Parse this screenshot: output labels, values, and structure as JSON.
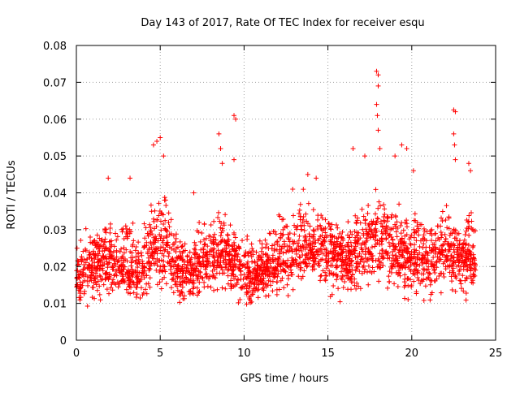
{
  "chart_data": {
    "type": "scatter",
    "title": "Day 143 of 2017, Rate Of TEC Index for receiver esqu",
    "xlabel": "GPS time / hours",
    "ylabel": "ROTI / TECUs",
    "xlim": [
      0,
      25
    ],
    "ylim": [
      0,
      0.08
    ],
    "x_ticks": [
      "0",
      "5",
      "10",
      "15",
      "20",
      "25"
    ],
    "y_ticks": [
      "0",
      "0.01",
      "0.02",
      "0.03",
      "0.04",
      "0.05",
      "0.06",
      "0.07",
      "0.08"
    ],
    "grid": true,
    "marker": "plus",
    "marker_color": "#ff0000",
    "series": [
      {
        "name": "ROTI",
        "envelope_x": [
          0,
          0.5,
          1,
          1.5,
          2,
          2.5,
          3,
          3.5,
          4,
          4.5,
          5,
          5.5,
          6,
          6.5,
          7,
          7.5,
          8,
          8.5,
          9,
          9.5,
          10,
          10.5,
          11,
          11.5,
          12,
          12.5,
          13,
          13.5,
          14,
          14.5,
          15,
          15.5,
          16,
          16.5,
          17,
          17.5,
          18,
          18.5,
          19,
          19.5,
          20,
          20.5,
          21,
          21.5,
          22,
          22.5,
          23,
          23.5,
          23.8
        ],
        "median": [
          0.017,
          0.018,
          0.02,
          0.021,
          0.022,
          0.02,
          0.019,
          0.018,
          0.02,
          0.024,
          0.027,
          0.024,
          0.02,
          0.018,
          0.019,
          0.022,
          0.023,
          0.024,
          0.022,
          0.02,
          0.018,
          0.017,
          0.018,
          0.02,
          0.021,
          0.022,
          0.024,
          0.026,
          0.025,
          0.024,
          0.023,
          0.022,
          0.021,
          0.022,
          0.024,
          0.026,
          0.028,
          0.026,
          0.024,
          0.022,
          0.023,
          0.022,
          0.021,
          0.022,
          0.024,
          0.023,
          0.021,
          0.022,
          0.02
        ],
        "upper": [
          0.026,
          0.031,
          0.033,
          0.034,
          0.035,
          0.034,
          0.037,
          0.032,
          0.033,
          0.042,
          0.048,
          0.04,
          0.032,
          0.028,
          0.031,
          0.034,
          0.036,
          0.039,
          0.034,
          0.032,
          0.029,
          0.028,
          0.029,
          0.032,
          0.035,
          0.037,
          0.039,
          0.042,
          0.04,
          0.038,
          0.036,
          0.034,
          0.033,
          0.034,
          0.038,
          0.041,
          0.045,
          0.041,
          0.04,
          0.037,
          0.039,
          0.037,
          0.034,
          0.035,
          0.037,
          0.036,
          0.033,
          0.04,
          0.032
        ],
        "lower": [
          0.01,
          0.009,
          0.008,
          0.01,
          0.011,
          0.01,
          0.009,
          0.009,
          0.01,
          0.012,
          0.012,
          0.011,
          0.009,
          0.008,
          0.009,
          0.01,
          0.011,
          0.011,
          0.01,
          0.009,
          0.009,
          0.008,
          0.009,
          0.01,
          0.01,
          0.011,
          0.011,
          0.012,
          0.012,
          0.011,
          0.011,
          0.01,
          0.01,
          0.01,
          0.011,
          0.012,
          0.013,
          0.012,
          0.011,
          0.01,
          0.011,
          0.01,
          0.01,
          0.01,
          0.011,
          0.011,
          0.01,
          0.01,
          0.01
        ],
        "spikes": [
          {
            "x": 4.6,
            "y": 0.053
          },
          {
            "x": 4.8,
            "y": 0.054
          },
          {
            "x": 5.0,
            "y": 0.055
          },
          {
            "x": 5.2,
            "y": 0.05
          },
          {
            "x": 8.5,
            "y": 0.056
          },
          {
            "x": 8.6,
            "y": 0.052
          },
          {
            "x": 8.7,
            "y": 0.048
          },
          {
            "x": 9.4,
            "y": 0.061
          },
          {
            "x": 9.5,
            "y": 0.06
          },
          {
            "x": 9.4,
            "y": 0.049
          },
          {
            "x": 16.5,
            "y": 0.052
          },
          {
            "x": 17.2,
            "y": 0.05
          },
          {
            "x": 17.9,
            "y": 0.073
          },
          {
            "x": 18.0,
            "y": 0.072
          },
          {
            "x": 18.0,
            "y": 0.069
          },
          {
            "x": 17.9,
            "y": 0.064
          },
          {
            "x": 17.95,
            "y": 0.061
          },
          {
            "x": 18.0,
            "y": 0.057
          },
          {
            "x": 18.1,
            "y": 0.052
          },
          {
            "x": 19.4,
            "y": 0.053
          },
          {
            "x": 19.7,
            "y": 0.052
          },
          {
            "x": 19.0,
            "y": 0.05
          },
          {
            "x": 22.5,
            "y": 0.0625
          },
          {
            "x": 22.6,
            "y": 0.062
          },
          {
            "x": 22.5,
            "y": 0.056
          },
          {
            "x": 22.55,
            "y": 0.053
          },
          {
            "x": 22.6,
            "y": 0.049
          },
          {
            "x": 23.4,
            "y": 0.048
          },
          {
            "x": 23.5,
            "y": 0.046
          },
          {
            "x": 1.9,
            "y": 0.044
          },
          {
            "x": 3.2,
            "y": 0.044
          },
          {
            "x": 13.8,
            "y": 0.045
          },
          {
            "x": 14.3,
            "y": 0.044
          },
          {
            "x": 20.1,
            "y": 0.046
          },
          {
            "x": 12.9,
            "y": 0.041
          },
          {
            "x": 7.0,
            "y": 0.04
          }
        ]
      }
    ]
  }
}
